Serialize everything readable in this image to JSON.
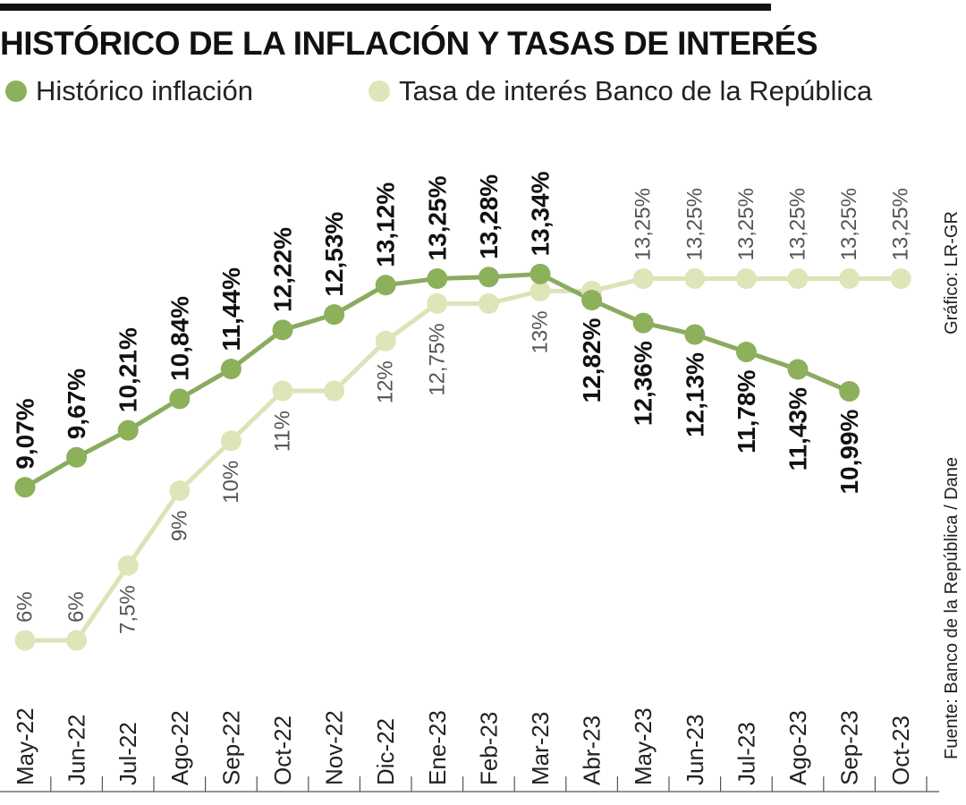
{
  "title": "HISTÓRICO DE LA INFLACIÓN Y TASAS DE INTERÉS",
  "colors": {
    "inflation": "#8db05a",
    "inflation_line": "#8aab5f",
    "rate": "#dfe5b8",
    "rate_line": "#dde3b6",
    "axis": "#555555",
    "text": "#111111",
    "label_light": "#555555"
  },
  "legend": [
    {
      "label": "Histórico inflación"
    },
    {
      "label": "Tasa de interés Banco de la República"
    }
  ],
  "credits": {
    "grafico": "Gráfico: LR-GR",
    "fuente": "Fuente: Banco de la República / Dane"
  },
  "chart_data": {
    "type": "line",
    "title": "HISTÓRICO DE LA INFLACIÓN Y TASAS DE INTERÉS",
    "xlabel": "",
    "ylabel": "",
    "grid": false,
    "legend_position": "top-left",
    "categories": [
      "May-22",
      "Jun-22",
      "Jul-22",
      "Ago-22",
      "Sep-22",
      "Oct-22",
      "Nov-22",
      "Dic-22",
      "Ene-23",
      "Feb-23",
      "Mar-23",
      "Abr-23",
      "May-23",
      "Jun-23",
      "Jul-23",
      "Ago-23",
      "Sep-23",
      "Oct-23"
    ],
    "series": [
      {
        "name": "Histórico inflación",
        "values": [
          9.07,
          9.67,
          10.21,
          10.84,
          11.44,
          12.22,
          12.53,
          13.12,
          13.25,
          13.28,
          13.34,
          12.82,
          12.36,
          12.13,
          11.78,
          11.43,
          10.99,
          null
        ],
        "labels": [
          "9,07%",
          "9,67%",
          "10,21%",
          "10,84%",
          "11,44%",
          "12,22%",
          "12,53%",
          "13,12%",
          "13,25%",
          "13,28%",
          "13,34%",
          "12,82%",
          "12,36%",
          "12,13%",
          "11,78%",
          "11,43%",
          "10,99%",
          ""
        ]
      },
      {
        "name": "Tasa de interés Banco de la República",
        "values": [
          6,
          6,
          7.5,
          9,
          10,
          11,
          11,
          12,
          12.75,
          12.75,
          13,
          13,
          13.25,
          13.25,
          13.25,
          13.25,
          13.25,
          13.25
        ],
        "labels": [
          "6%",
          "6%",
          "7,5%",
          "9%",
          "10%",
          "11%",
          "",
          "12%",
          "12,75%",
          "",
          "13%",
          "",
          "13,25%",
          "13,25%",
          "13,25%",
          "13,25%",
          "13,25%",
          "13,25%"
        ]
      }
    ]
  }
}
